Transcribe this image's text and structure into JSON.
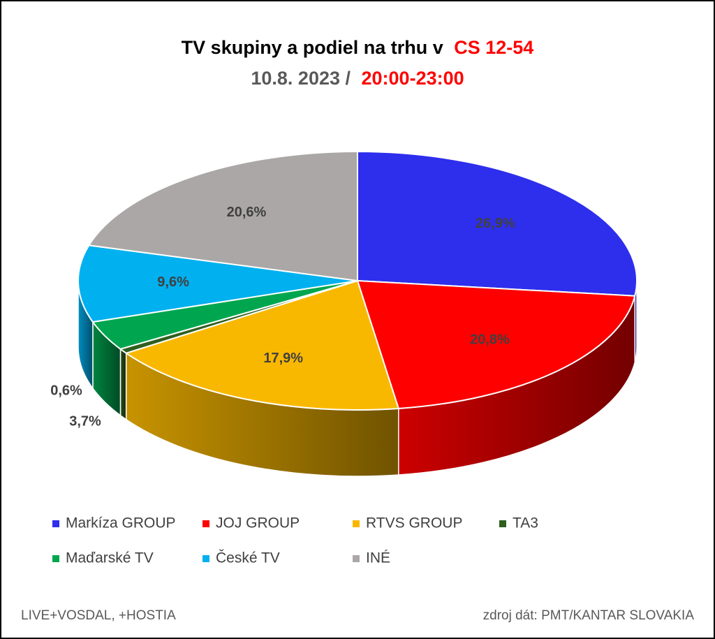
{
  "chart_data": {
    "type": "pie3d",
    "title": "TV skupiny a podiel na trhu v",
    "title_highlight": "CS 12-54",
    "subtitle": "10.8. 2023 /",
    "subtitle_highlight": "20:00-23:00",
    "categories": [
      "Markíza GROUP",
      "JOJ GROUP",
      "RTVS GROUP",
      "TA3",
      "Maďarské  TV",
      "České  TV",
      "INÉ"
    ],
    "values": [
      26.9,
      20.8,
      17.9,
      0.6,
      3.7,
      9.6,
      20.6
    ],
    "value_labels": [
      "26,9%",
      "20,8%",
      "17,9%",
      "0,6%",
      "3,7%",
      "9,6%",
      "20,6%"
    ],
    "colors": [
      "#2e2eed",
      "#ff0000",
      "#f9b800",
      "#2f5f1e",
      "#00a64f",
      "#00b0ef",
      "#aba7a7"
    ],
    "legend": "bottom",
    "notes": [
      "LIVE+VOSDAL, +HOSTIA",
      "zdroj dát: PMT/KANTAR SLOVAKIA"
    ]
  }
}
